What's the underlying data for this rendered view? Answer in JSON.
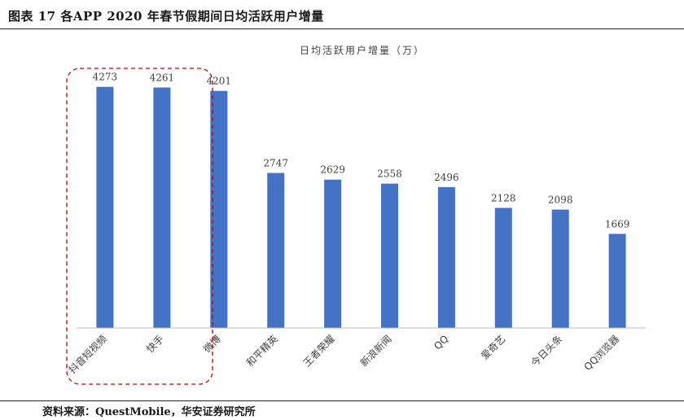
{
  "figure": {
    "title": "图表 17 各APP 2020 年春节假期间日均活跃用户增量",
    "source": "资料来源：QuestMobile，华安证券研究所"
  },
  "chart_data": {
    "type": "bar",
    "title": "日均活跃用户增量（万）",
    "categories": [
      "抖音短视频",
      "快手",
      "微博",
      "和平精英",
      "王者荣耀",
      "新浪新闻",
      "QQ",
      "爱奇艺",
      "今日头条",
      "QQ浏览器"
    ],
    "series": [
      {
        "values": [
          4273,
          4261,
          4201,
          2747,
          2629,
          2558,
          2496,
          2128,
          2098,
          1669
        ]
      }
    ],
    "ylim": [
      0,
      4600
    ],
    "grid": false,
    "legend": "none",
    "highlighted_categories": [
      "抖音短视频",
      "快手"
    ],
    "bar_color": "#4472C4",
    "highlight_color": "#C00000"
  }
}
